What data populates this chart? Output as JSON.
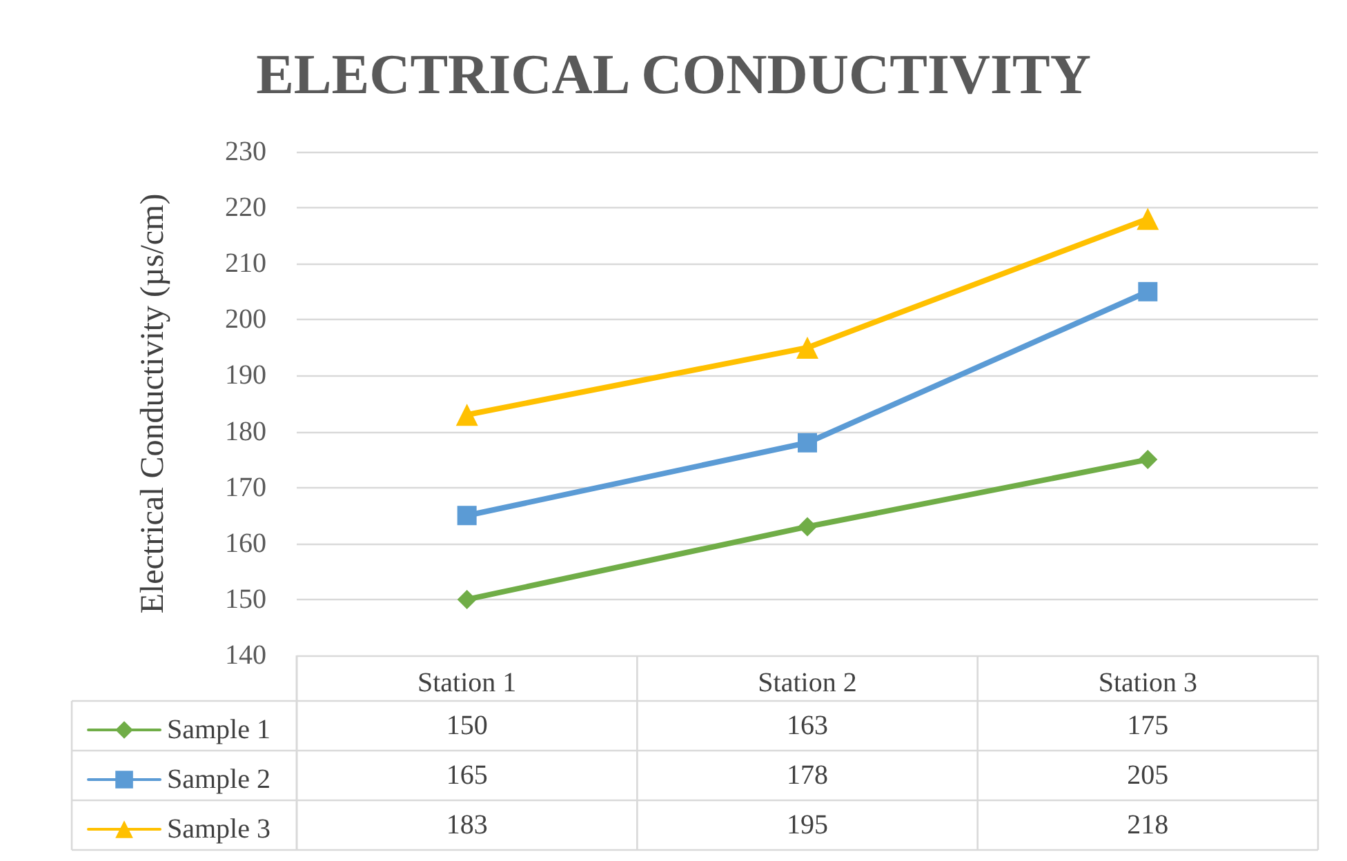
{
  "chart_data": {
    "type": "line",
    "title": "ELECTRICAL CONDUCTIVITY",
    "ylabel": "Electrical Conductivity (µs/cm)",
    "categories": [
      "Station 1",
      "Station 2",
      "Station 3"
    ],
    "series": [
      {
        "name": "Sample 1",
        "color": "#70ad47",
        "marker": "diamond",
        "values": [
          150,
          163,
          175
        ]
      },
      {
        "name": "Sample 2",
        "color": "#5b9bd5",
        "marker": "square",
        "values": [
          165,
          178,
          205
        ]
      },
      {
        "name": "Sample 3",
        "color": "#ffc000",
        "marker": "triangle",
        "values": [
          183,
          195,
          218
        ]
      }
    ],
    "ylim": [
      140,
      230
    ],
    "yticks": [
      140,
      150,
      160,
      170,
      180,
      190,
      200,
      210,
      220,
      230
    ],
    "grid": "y",
    "legend": "bottom",
    "data_labels": true
  }
}
